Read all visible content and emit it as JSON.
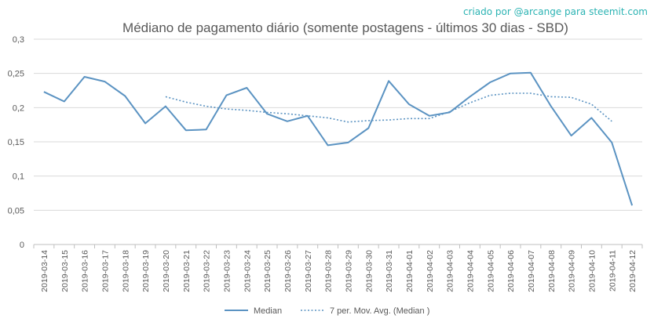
{
  "credit": "criado por @arcange para steemit.com",
  "colors": {
    "line": "#5b93c2",
    "grid": "#d9d9d9",
    "axis": "#bfbfbf",
    "text": "#595959",
    "credit": "#2bb3b3"
  },
  "chart_data": {
    "type": "line",
    "title": "Médiano de pagamento diário (somente postagens - últimos 30 dias - SBD)",
    "xlabel": "",
    "ylabel": "",
    "ylim": [
      0,
      0.3
    ],
    "yticks": [
      "0",
      "0,05",
      "0,1",
      "0,15",
      "0,2",
      "0,25",
      "0,3"
    ],
    "grid": true,
    "legend": "bottom",
    "categories": [
      "2019-03-14",
      "2019-03-15",
      "2019-03-16",
      "2019-03-17",
      "2019-03-18",
      "2019-03-19",
      "2019-03-20",
      "2019-03-21",
      "2019-03-22",
      "2019-03-23",
      "2019-03-24",
      "2019-03-25",
      "2019-03-26",
      "2019-03-27",
      "2019-03-28",
      "2019-03-29",
      "2019-03-30",
      "2019-03-31",
      "2019-04-01",
      "2019-04-02",
      "2019-04-03",
      "2019-04-04",
      "2019-04-05",
      "2019-04-06",
      "2019-04-07",
      "2019-04-08",
      "2019-04-09",
      "2019-04-10",
      "2019-04-11",
      "2019-04-12"
    ],
    "series": [
      {
        "name": "Median",
        "style": "solid",
        "values": [
          0.223,
          0.209,
          0.245,
          0.238,
          0.217,
          0.177,
          0.202,
          0.167,
          0.168,
          0.218,
          0.229,
          0.191,
          0.18,
          0.188,
          0.145,
          0.149,
          0.17,
          0.239,
          0.205,
          0.188,
          0.193,
          0.216,
          0.237,
          0.25,
          0.251,
          0.202,
          0.159,
          0.185,
          0.149,
          0.057
        ]
      },
      {
        "name": "7 per. Mov. Avg. (Median )",
        "style": "dotted",
        "values": [
          null,
          null,
          null,
          null,
          null,
          null,
          0.216,
          0.208,
          0.202,
          0.198,
          0.196,
          0.193,
          0.191,
          0.188,
          0.185,
          0.179,
          0.181,
          0.182,
          0.184,
          0.184,
          0.194,
          0.207,
          0.218,
          0.221,
          0.221,
          0.216,
          0.215,
          0.205,
          0.18,
          null
        ]
      }
    ]
  }
}
